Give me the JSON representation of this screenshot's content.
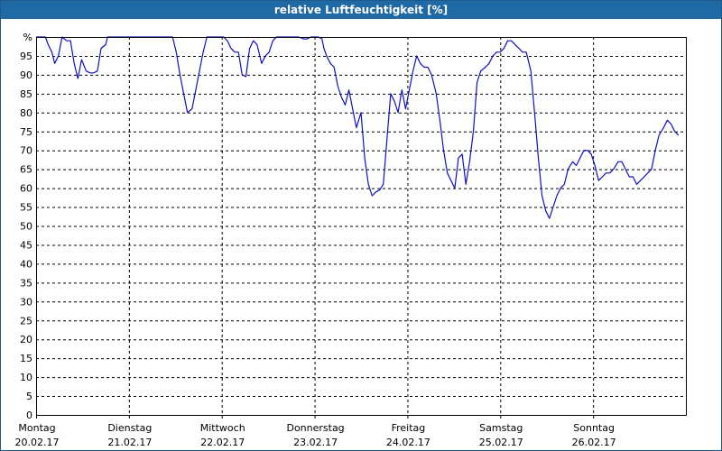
{
  "window": {
    "title": "relative Luftfeuchtigkeit [%]"
  },
  "colors": {
    "title_bar": "#1f6aa5",
    "line": "#1010c0",
    "grid": "#000000"
  },
  "chart_data": {
    "type": "line",
    "title": "relative Luftfeuchtigkeit [%]",
    "unit_label": "%",
    "ylim": [
      0,
      100
    ],
    "yticks": [
      0,
      5,
      10,
      15,
      20,
      25,
      30,
      35,
      40,
      45,
      50,
      55,
      60,
      65,
      70,
      75,
      80,
      85,
      90,
      95
    ],
    "xlim": [
      0,
      7
    ],
    "grid": true,
    "x_categories": [
      {
        "day": "Montag",
        "date": "20.02.17"
      },
      {
        "day": "Dienstag",
        "date": "21.02.17"
      },
      {
        "day": "Mittwoch",
        "date": "22.02.17"
      },
      {
        "day": "Donnerstag",
        "date": "23.02.17"
      },
      {
        "day": "Freitag",
        "date": "24.02.17"
      },
      {
        "day": "Samstag",
        "date": "25.02.17"
      },
      {
        "day": "Sonntag",
        "date": "26.02.17"
      }
    ],
    "series": [
      {
        "points": [
          [
            0.0,
            100
          ],
          [
            0.1,
            100
          ],
          [
            0.13,
            98
          ],
          [
            0.17,
            96
          ],
          [
            0.2,
            93
          ],
          [
            0.24,
            95
          ],
          [
            0.28,
            100
          ],
          [
            0.33,
            99
          ],
          [
            0.37,
            99
          ],
          [
            0.41,
            93
          ],
          [
            0.45,
            89
          ],
          [
            0.49,
            94
          ],
          [
            0.54,
            91
          ],
          [
            0.58,
            90.5
          ],
          [
            0.62,
            90.5
          ],
          [
            0.66,
            91
          ],
          [
            0.7,
            97
          ],
          [
            0.75,
            98
          ],
          [
            0.77,
            100
          ],
          [
            1.47,
            100
          ],
          [
            1.51,
            96
          ],
          [
            1.55,
            90
          ],
          [
            1.59,
            85
          ],
          [
            1.63,
            80
          ],
          [
            1.68,
            81
          ],
          [
            1.72,
            86
          ],
          [
            1.76,
            91
          ],
          [
            1.8,
            96
          ],
          [
            1.84,
            100
          ],
          [
            2.02,
            100
          ],
          [
            2.06,
            99
          ],
          [
            2.1,
            97
          ],
          [
            2.14,
            96
          ],
          [
            2.18,
            96
          ],
          [
            2.22,
            90
          ],
          [
            2.26,
            89.5
          ],
          [
            2.3,
            97
          ],
          [
            2.34,
            99
          ],
          [
            2.38,
            98
          ],
          [
            2.43,
            93
          ],
          [
            2.47,
            95
          ],
          [
            2.51,
            96
          ],
          [
            2.55,
            99
          ],
          [
            2.59,
            100
          ],
          [
            2.83,
            100
          ],
          [
            2.88,
            99.5
          ],
          [
            2.92,
            99.5
          ],
          [
            2.96,
            100
          ],
          [
            3.01,
            100
          ],
          [
            3.04,
            100
          ],
          [
            3.08,
            99.5
          ],
          [
            3.1,
            97
          ],
          [
            3.13,
            95
          ],
          [
            3.17,
            93
          ],
          [
            3.21,
            92
          ],
          [
            3.25,
            87
          ],
          [
            3.29,
            84
          ],
          [
            3.33,
            82
          ],
          [
            3.37,
            86
          ],
          [
            3.41,
            81
          ],
          [
            3.45,
            76
          ],
          [
            3.5,
            80
          ],
          [
            3.54,
            68
          ],
          [
            3.58,
            61
          ],
          [
            3.62,
            58
          ],
          [
            3.66,
            59
          ],
          [
            3.7,
            59.5
          ],
          [
            3.74,
            61
          ],
          [
            3.78,
            73
          ],
          [
            3.82,
            85
          ],
          [
            3.86,
            83
          ],
          [
            3.9,
            80
          ],
          [
            3.94,
            86
          ],
          [
            3.98,
            81
          ],
          [
            4.02,
            86
          ],
          [
            4.06,
            91
          ],
          [
            4.1,
            95
          ],
          [
            4.14,
            93
          ],
          [
            4.18,
            92
          ],
          [
            4.22,
            92
          ],
          [
            4.26,
            90
          ],
          [
            4.31,
            85
          ],
          [
            4.35,
            78
          ],
          [
            4.39,
            70
          ],
          [
            4.43,
            64
          ],
          [
            4.47,
            62
          ],
          [
            4.51,
            60
          ],
          [
            4.55,
            68
          ],
          [
            4.59,
            69
          ],
          [
            4.63,
            61
          ],
          [
            4.67,
            67
          ],
          [
            4.71,
            75
          ],
          [
            4.75,
            88
          ],
          [
            4.79,
            91
          ],
          [
            4.84,
            92
          ],
          [
            4.88,
            93
          ],
          [
            4.92,
            95
          ],
          [
            4.96,
            96
          ],
          [
            5.0,
            96
          ],
          [
            5.04,
            97
          ],
          [
            5.08,
            99
          ],
          [
            5.12,
            99
          ],
          [
            5.16,
            98
          ],
          [
            5.2,
            97
          ],
          [
            5.24,
            96
          ],
          [
            5.28,
            96
          ],
          [
            5.33,
            91
          ],
          [
            5.37,
            80
          ],
          [
            5.41,
            68
          ],
          [
            5.45,
            58
          ],
          [
            5.49,
            54
          ],
          [
            5.53,
            52
          ],
          [
            5.57,
            55
          ],
          [
            5.61,
            58
          ],
          [
            5.65,
            60
          ],
          [
            5.69,
            61
          ],
          [
            5.73,
            65
          ],
          [
            5.78,
            67
          ],
          [
            5.82,
            66
          ],
          [
            5.86,
            68
          ],
          [
            5.9,
            70
          ],
          [
            5.94,
            70
          ],
          [
            5.98,
            69
          ],
          [
            6.02,
            66
          ],
          [
            6.06,
            62
          ],
          [
            6.1,
            63
          ],
          [
            6.14,
            64
          ],
          [
            6.18,
            64
          ],
          [
            6.22,
            65
          ],
          [
            6.27,
            67
          ],
          [
            6.31,
            67
          ],
          [
            6.35,
            65
          ],
          [
            6.39,
            63
          ],
          [
            6.43,
            63
          ],
          [
            6.47,
            61
          ],
          [
            6.51,
            62
          ],
          [
            6.55,
            63
          ],
          [
            6.59,
            64
          ],
          [
            6.63,
            65
          ],
          [
            6.67,
            70
          ],
          [
            6.71,
            74
          ],
          [
            6.76,
            76
          ],
          [
            6.8,
            78
          ],
          [
            6.84,
            77
          ],
          [
            6.88,
            75
          ],
          [
            6.92,
            74
          ]
        ]
      }
    ]
  }
}
